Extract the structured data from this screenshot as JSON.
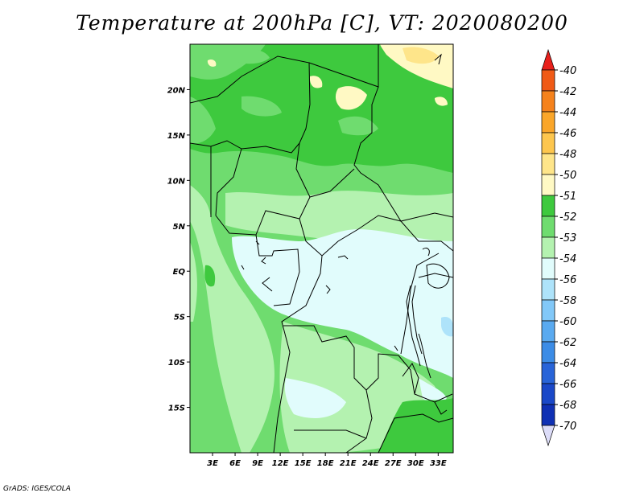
{
  "title": "Temperature at 200hPa [C], VT: 2020080200",
  "credit": "GrADS: IGES/COLA",
  "map": {
    "lon_range": [
      0,
      35
    ],
    "lat_range": [
      -20,
      25
    ],
    "lat_labels": [
      {
        "lat": 20,
        "label": "20N"
      },
      {
        "lat": 15,
        "label": "15N"
      },
      {
        "lat": 10,
        "label": "10N"
      },
      {
        "lat": 5,
        "label": "5N"
      },
      {
        "lat": 0,
        "label": "EQ"
      },
      {
        "lat": -5,
        "label": "5S"
      },
      {
        "lat": -10,
        "label": "10S"
      },
      {
        "lat": -15,
        "label": "15S"
      }
    ],
    "lon_labels": [
      {
        "lon": 3,
        "label": "3E"
      },
      {
        "lon": 6,
        "label": "6E"
      },
      {
        "lon": 9,
        "label": "9E"
      },
      {
        "lon": 12,
        "label": "12E"
      },
      {
        "lon": 15,
        "label": "15E"
      },
      {
        "lon": 18,
        "label": "18E"
      },
      {
        "lon": 21,
        "label": "21E"
      },
      {
        "lon": 24,
        "label": "24E"
      },
      {
        "lon": 27,
        "label": "27E"
      },
      {
        "lon": 30,
        "label": "30E"
      },
      {
        "lon": 33,
        "label": "33E"
      }
    ]
  },
  "colorbar": {
    "labels": [
      "-40",
      "-42",
      "-44",
      "-46",
      "-48",
      "-50",
      "-51",
      "-52",
      "-53",
      "-54",
      "-56",
      "-58",
      "-60",
      "-62",
      "-64",
      "-66",
      "-68",
      "-70"
    ],
    "colors": [
      "#e8201c",
      "#f05a16",
      "#f5821c",
      "#faa62a",
      "#fdc64e",
      "#fee58a",
      "#fff9c4",
      "#3ec93e",
      "#6fdc6f",
      "#b4f2b0",
      "#e1fcfc",
      "#aee3fa",
      "#82c8f8",
      "#5aaaf0",
      "#3c8ce6",
      "#2864d8",
      "#1a48c8",
      "#0f30b4",
      "#0c0c6e",
      "#dcdcf8"
    ]
  }
}
